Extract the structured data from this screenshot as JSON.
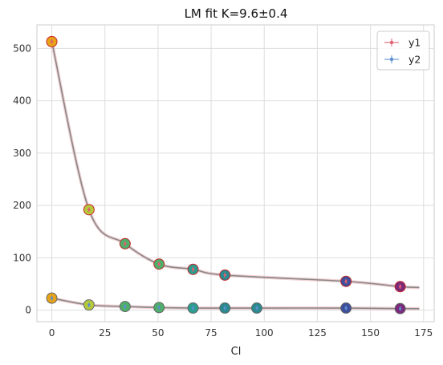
{
  "chart_data": {
    "type": "scatter",
    "title": "LM fit K=9.6±0.4",
    "xlabel": "Cl",
    "ylabel": "",
    "xlim": [
      -7,
      180
    ],
    "ylim": [
      -22,
      545
    ],
    "xticks": [
      0,
      25,
      50,
      75,
      100,
      125,
      150,
      175
    ],
    "yticks": [
      0,
      100,
      200,
      300,
      400,
      500
    ],
    "grid": true,
    "legend_position": "top-right",
    "series": [
      {
        "name": "y1",
        "color": "#e06070",
        "x": [
          0,
          17.5,
          34.5,
          50.5,
          66.5,
          81.5,
          138.5,
          164
        ],
        "y": [
          513,
          192,
          127,
          88,
          78,
          67,
          55,
          45
        ]
      },
      {
        "name": "y2",
        "color": "#5b8fd0",
        "x": [
          0,
          17.5,
          34.5,
          50.5,
          66.5,
          81.5,
          96.5,
          138.5,
          164
        ],
        "y": [
          23,
          10,
          7,
          5,
          4,
          4,
          4,
          4,
          3
        ]
      }
    ],
    "fit_curves": [
      {
        "series": "y1",
        "color": "#888888",
        "x_range": [
          0,
          173
        ]
      },
      {
        "series": "y2",
        "color": "#888888",
        "x_range": [
          0,
          173
        ]
      }
    ],
    "marker_colormap": [
      "#e8a317",
      "#b5c93a",
      "#4fae6a",
      "#2a9d8f",
      "#2a8a8f",
      "#2f6ea8",
      "#3d4e9c",
      "#7a2a7a",
      "#c2185b"
    ]
  }
}
